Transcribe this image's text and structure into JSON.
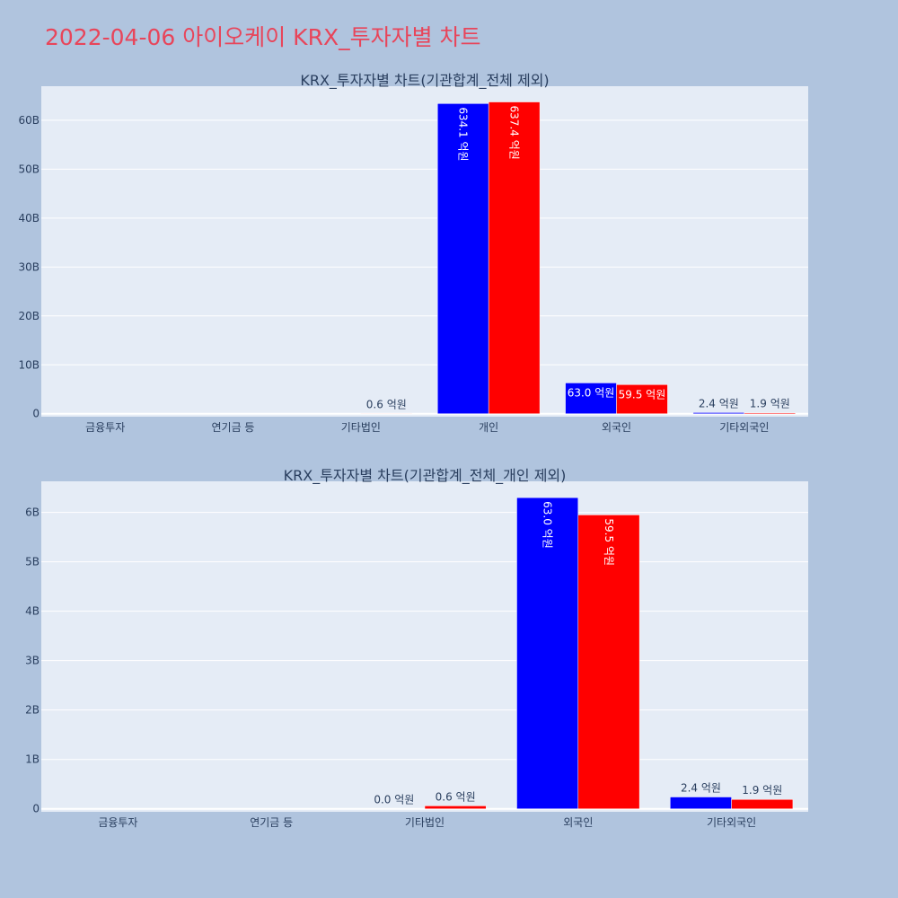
{
  "page": {
    "title": "2022-04-06 아이오케이 KRX_투자자별 차트"
  },
  "colors": {
    "series_a": "#0000ff",
    "series_b": "#ff0000",
    "plot_bg": "#e5ecf6",
    "page_bg": "#b0c4de",
    "title": "#e8455a"
  },
  "chart_data": [
    {
      "type": "bar",
      "title": "KRX_투자자별 차트(기관합계_전체 제외)",
      "categories": [
        "금융투자",
        "연기금 등",
        "기타법인",
        "개인",
        "외국인",
        "기타외국인"
      ],
      "series": [
        {
          "values": [
            0,
            0,
            0,
            63410000000,
            6300000000,
            240000000
          ],
          "labels": [
            "",
            "",
            "",
            "634.1 억원",
            "63.0 억원",
            "2.4 억원"
          ]
        },
        {
          "values": [
            0,
            0,
            60000000,
            63740000000,
            5950000000,
            190000000
          ],
          "labels": [
            "",
            "",
            "0.6 억원",
            "637.4 억원",
            "59.5 억원",
            "1.9 억원"
          ]
        }
      ],
      "yticks": [
        0,
        10000000000,
        20000000000,
        30000000000,
        40000000000,
        50000000000,
        60000000000
      ],
      "ytick_labels": [
        "0",
        "10B",
        "20B",
        "30B",
        "40B",
        "50B",
        "60B"
      ],
      "ylim": [
        -600000000,
        66960000000
      ],
      "grid": true
    },
    {
      "type": "bar",
      "title": "KRX_투자자별 차트(기관합계_전체_개인 제외)",
      "categories": [
        "금융투자",
        "연기금 등",
        "기타법인",
        "외국인",
        "기타외국인"
      ],
      "series": [
        {
          "values": [
            0,
            0,
            0,
            6300000000,
            240000000
          ],
          "labels": [
            "",
            "",
            "0.0 억원",
            "63.0 억원",
            "2.4 억원"
          ]
        },
        {
          "values": [
            0,
            0,
            60000000,
            5950000000,
            190000000
          ],
          "labels": [
            "",
            "",
            "0.6 억원",
            "59.5 억원",
            "1.9 억원"
          ]
        }
      ],
      "yticks": [
        0,
        1000000000,
        2000000000,
        3000000000,
        4000000000,
        5000000000,
        6000000000
      ],
      "ytick_labels": [
        "0",
        "1B",
        "2B",
        "3B",
        "4B",
        "5B",
        "6B"
      ],
      "ylim": [
        -60000000,
        6630000000
      ],
      "grid": true
    }
  ]
}
